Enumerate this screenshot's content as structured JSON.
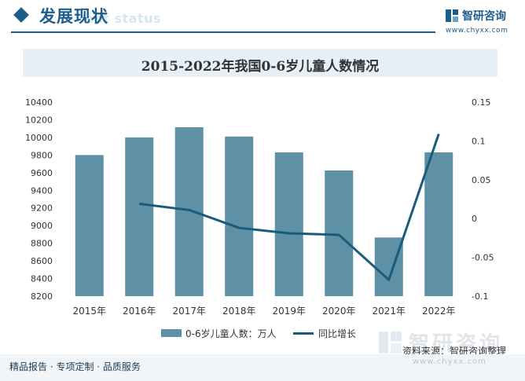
{
  "header": {
    "title": "发展现状",
    "subtitle": "ent status",
    "brand": "智研咨询",
    "url": "www.chyxx.com"
  },
  "colors": {
    "accent": "#1d5d8c",
    "bar": "#5e91a6",
    "line": "#1b5b7a"
  },
  "chart_data": {
    "type": "bar",
    "title": "2015-2022年我国0-6岁儿童人数情况",
    "categories": [
      "2015年",
      "2016年",
      "2017年",
      "2018年",
      "2019年",
      "2020年",
      "2021年",
      "2022年"
    ],
    "series": [
      {
        "name": "0-6岁儿童人数：万人",
        "type": "bar",
        "axis": "left",
        "values": [
          9800,
          10000,
          10115,
          10010,
          9830,
          9625,
          8865,
          9830
        ]
      },
      {
        "name": "同比增长",
        "type": "line",
        "axis": "right",
        "values": [
          null,
          0.019,
          0.011,
          -0.012,
          -0.019,
          -0.021,
          -0.079,
          0.109
        ]
      }
    ],
    "y_left": {
      "min": 8200,
      "max": 10400,
      "ticks": [
        8200,
        8400,
        8600,
        8800,
        9000,
        9200,
        9400,
        9600,
        9800,
        10000,
        10200,
        10400
      ]
    },
    "y_right": {
      "min": -0.1,
      "max": 0.15,
      "ticks": [
        -0.1,
        -0.05,
        0,
        0.05,
        0.1,
        0.15
      ],
      "tick_labels": [
        "-0.1",
        "-0.05",
        "0",
        "0.05",
        "0.1",
        "0.15"
      ]
    },
    "grid": false,
    "legend_position": "bottom"
  },
  "footer": {
    "source": "资料来源：智研咨询整理",
    "source_brand": "智研咨询",
    "source_url": "www.chyxx.com",
    "tagline": "精品报告 · 专项定制 · 品质服务"
  }
}
